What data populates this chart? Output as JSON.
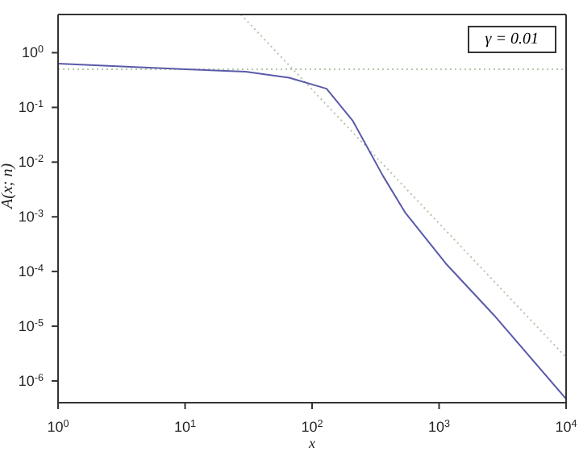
{
  "chart_data": {
    "type": "line",
    "xlabel": "x",
    "ylabel": "A(x; n)",
    "annotations": [
      "γ = 0.01"
    ],
    "log": "xy",
    "xlim": [
      1,
      10000
    ],
    "ylim": [
      4e-07,
      5
    ],
    "xticks": [
      {
        "value": 1,
        "label": "10$^{0}$"
      },
      {
        "value": 10,
        "label": "10$^{1}$"
      },
      {
        "value": 100,
        "label": "10$^{2}$"
      },
      {
        "value": 1000,
        "label": "10$^{3}$"
      },
      {
        "value": 10000,
        "label": "10$^{4}$"
      }
    ],
    "yticks": [
      {
        "value": 1e-06,
        "label": "10$^{-6}$"
      },
      {
        "value": 1e-05,
        "label": "10$^{-5}$"
      },
      {
        "value": 0.0001,
        "label": "10$^{-4}$"
      },
      {
        "value": 0.001,
        "label": "10$^{-3}$"
      },
      {
        "value": 0.01,
        "label": "10$^{-2}$"
      },
      {
        "value": 0.1,
        "label": "10$^{-1}$"
      },
      {
        "value": 1,
        "label": "10$^{0}$"
      }
    ],
    "series": [
      {
        "color": "#b0c8a8",
        "line_style": "dotted",
        "x": [
          1,
          10000
        ],
        "values": [
          0.5,
          0.5
        ]
      },
      {
        "color": "#b0c8a8",
        "line_style": "dotted",
        "x": [
          27.5,
          10000
        ],
        "values": [
          5,
          2.7e-06
        ]
      },
      {
        "color": "#5a5aaa",
        "line_style": "solid",
        "x": [
          1,
          10,
          30,
          66,
          130,
          210,
          360,
          540,
          1130,
          2700,
          10000
        ],
        "values": [
          0.63,
          0.5,
          0.45,
          0.35,
          0.22,
          0.056,
          0.0057,
          0.0012,
          0.00014,
          1.6e-05,
          4.7e-07
        ]
      }
    ]
  }
}
